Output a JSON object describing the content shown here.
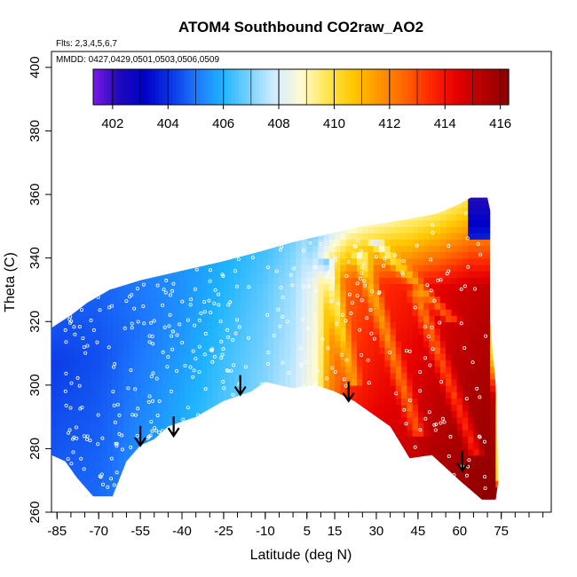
{
  "chart_data": {
    "type": "heatmap",
    "title": "ATOM4 Southbound CO2raw_AO2",
    "flights_note": "Flts: 2,3,4,5,6,7",
    "dates_note": "MMDD: 0427,0429,0501,0503,0506,0509",
    "xlabel": "Latitude (deg N)",
    "ylabel": "Theta (C)",
    "xlim": [
      -87,
      93
    ],
    "ylim": [
      260,
      405
    ],
    "x_ticks": [
      -85,
      -70,
      -55,
      -40,
      -25,
      -10,
      5,
      15,
      30,
      45,
      60,
      75
    ],
    "y_ticks": [
      260,
      280,
      300,
      320,
      340,
      360,
      380,
      400
    ],
    "colorbar": {
      "min": 401.3,
      "max": 416.3,
      "ticks": [
        402,
        404,
        406,
        408,
        410,
        412,
        414,
        416
      ],
      "colors": [
        "#7a1ae6",
        "#1e0aba",
        "#0000c8",
        "#0a37e6",
        "#1e78ff",
        "#1eb4ff",
        "#78d2ff",
        "#d2ecff",
        "#fffad2",
        "#ffe650",
        "#ffc800",
        "#ff9600",
        "#ff6400",
        "#ff2800",
        "#e60000",
        "#b40000",
        "#8c0000"
      ]
    },
    "boundary": {
      "upper": [
        [
          -87,
          318
        ],
        [
          -80,
          322
        ],
        [
          -74,
          326
        ],
        [
          -66,
          330
        ],
        [
          -55,
          333
        ],
        [
          -40,
          336
        ],
        [
          -25,
          339
        ],
        [
          -12,
          342
        ],
        [
          0,
          345
        ],
        [
          10,
          347
        ],
        [
          25,
          350
        ],
        [
          40,
          352
        ],
        [
          52,
          354
        ],
        [
          60,
          357
        ],
        [
          64,
          359
        ],
        [
          70,
          359
        ],
        [
          71,
          355
        ],
        [
          71,
          320
        ],
        [
          73,
          300
        ],
        [
          74,
          270
        ],
        [
          73,
          264
        ]
      ],
      "lower": [
        [
          -87,
          278
        ],
        [
          -82,
          276
        ],
        [
          -78,
          271
        ],
        [
          -72,
          265
        ],
        [
          -65,
          265
        ],
        [
          -60,
          276
        ],
        [
          -55,
          281
        ],
        [
          -50,
          283
        ],
        [
          -45,
          287
        ],
        [
          -35,
          290
        ],
        [
          -25,
          295
        ],
        [
          -15,
          298
        ],
        [
          -10,
          301
        ],
        [
          0,
          299
        ],
        [
          8,
          300
        ],
        [
          15,
          298
        ],
        [
          22,
          295
        ],
        [
          35,
          287
        ],
        [
          42,
          277
        ],
        [
          50,
          278
        ],
        [
          60,
          270
        ],
        [
          68,
          264
        ]
      ]
    },
    "field": {
      "base_values": [
        [
          -87,
          404.0
        ],
        [
          -70,
          404.3
        ],
        [
          -55,
          404.8
        ],
        [
          -40,
          405.3
        ],
        [
          -25,
          405.9
        ],
        [
          -10,
          406.5
        ],
        [
          0,
          407.2
        ],
        [
          8,
          408.3
        ],
        [
          14,
          410.5
        ],
        [
          20,
          412.0
        ],
        [
          30,
          412.8
        ],
        [
          40,
          413.3
        ],
        [
          50,
          413.8
        ],
        [
          60,
          414.3
        ],
        [
          74,
          414.8
        ]
      ],
      "lower_boost": 1.6,
      "upper_trop_value": 406.0
    },
    "flight_tracks": [
      {
        "lat_start": 12,
        "lat_end": 22,
        "theta_start": 340,
        "theta_end": 300
      },
      {
        "lat_start": 24,
        "lat_end": 45,
        "theta_start": 342,
        "theta_end": 285
      },
      {
        "lat_start": 44,
        "lat_end": 66,
        "theta_start": 330,
        "theta_end": 278
      },
      {
        "lat_start": 30,
        "lat_end": 58,
        "theta_start": 345,
        "theta_end": 320
      }
    ],
    "arrows": [
      {
        "lat": -55,
        "theta": 281
      },
      {
        "lat": -43,
        "theta": 284
      },
      {
        "lat": -19,
        "theta": 297
      },
      {
        "lat": 20,
        "theta": 295
      },
      {
        "lat": 61,
        "theta": 273
      }
    ],
    "sample_points_note": "Scattered white circles mark individual measurement locations"
  }
}
